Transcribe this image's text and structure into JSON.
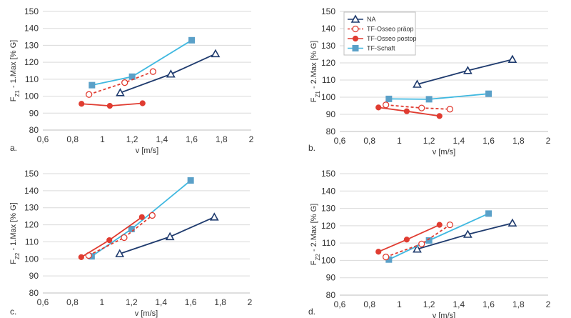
{
  "figure": {
    "legend": {
      "entries": [
        "NA",
        "TF-Osseo präop",
        "TF-Osseo postop",
        "TF-Schaft"
      ]
    }
  },
  "chart_data": [
    {
      "type": "line",
      "panel_label": "a.",
      "xlabel": "v [m/s]",
      "ylabel": "F_Z1 - 1.Max [% G]",
      "ylabel_parts": {
        "main": "F",
        "sub": "Z1",
        "rest": " - 1.Max [% G]"
      },
      "xlim": [
        0.6,
        2.0
      ],
      "ylim": [
        80,
        150
      ],
      "xticks": [
        "0,6",
        "0,8",
        "1",
        "1,2",
        "1,4",
        "1,6",
        "1,8",
        "2"
      ],
      "yticks": [
        "80",
        "90",
        "100",
        "110",
        "120",
        "130",
        "140",
        "150"
      ],
      "grid": true,
      "series": [
        {
          "name": "NA",
          "x": [
            1.12,
            1.46,
            1.76
          ],
          "y": [
            102,
            113,
            125
          ]
        },
        {
          "name": "TF-Osseo präop",
          "x": [
            0.91,
            1.15,
            1.34
          ],
          "y": [
            101,
            108,
            114.5
          ]
        },
        {
          "name": "TF-Osseo postop",
          "x": [
            0.86,
            1.05,
            1.27
          ],
          "y": [
            95.5,
            94.3,
            95.8
          ]
        },
        {
          "name": "TF-Schaft",
          "x": [
            0.93,
            1.2,
            1.6
          ],
          "y": [
            106.5,
            111.5,
            133
          ]
        }
      ]
    },
    {
      "type": "line",
      "panel_label": "b.",
      "xlabel": "v [m/s]",
      "ylabel": "F_Z1 - 2.Max [% G]",
      "ylabel_parts": {
        "main": "F",
        "sub": "Z1",
        "rest": " - 2.Max [% G]"
      },
      "xlim": [
        0.6,
        2.0
      ],
      "ylim": [
        80,
        150
      ],
      "xticks": [
        "0,6",
        "0,8",
        "1",
        "1,2",
        "1,4",
        "1,6",
        "1,8",
        "2"
      ],
      "yticks": [
        "80",
        "90",
        "100",
        "110",
        "120",
        "130",
        "140",
        "150"
      ],
      "grid": true,
      "legend_position": "top-left",
      "series": [
        {
          "name": "NA",
          "x": [
            1.12,
            1.46,
            1.76
          ],
          "y": [
            107.5,
            115.5,
            122
          ]
        },
        {
          "name": "TF-Osseo präop",
          "x": [
            0.91,
            1.15,
            1.34
          ],
          "y": [
            95.5,
            93.7,
            93
          ]
        },
        {
          "name": "TF-Osseo postop",
          "x": [
            0.86,
            1.05,
            1.27
          ],
          "y": [
            94,
            91.8,
            89
          ]
        },
        {
          "name": "TF-Schaft",
          "x": [
            0.93,
            1.2,
            1.6
          ],
          "y": [
            99,
            98.8,
            102
          ]
        }
      ]
    },
    {
      "type": "line",
      "panel_label": "c.",
      "xlabel": "v [m/s]",
      "ylabel": "F_Z2 - 1.Max [% G]",
      "ylabel_parts": {
        "main": "F",
        "sub": "Z2",
        "rest": " - 1.Max [% G]"
      },
      "xlim": [
        0.6,
        2.0
      ],
      "ylim": [
        80,
        150
      ],
      "xticks": [
        "0,6",
        "0,8",
        "1",
        "1,2",
        "1,4",
        "1,6",
        "1,8",
        "2"
      ],
      "yticks": [
        "80",
        "90",
        "100",
        "110",
        "120",
        "130",
        "140",
        "150"
      ],
      "grid": true,
      "series": [
        {
          "name": "NA",
          "x": [
            1.12,
            1.46,
            1.76
          ],
          "y": [
            103,
            113,
            124.5
          ]
        },
        {
          "name": "TF-Osseo präop",
          "x": [
            0.91,
            1.15,
            1.34
          ],
          "y": [
            102,
            112.5,
            125.5
          ]
        },
        {
          "name": "TF-Osseo postop",
          "x": [
            0.86,
            1.05,
            1.27
          ],
          "y": [
            101,
            111,
            124.5
          ]
        },
        {
          "name": "TF-Schaft",
          "x": [
            0.93,
            1.2,
            1.6
          ],
          "y": [
            101.5,
            117.5,
            146
          ]
        }
      ]
    },
    {
      "type": "line",
      "panel_label": "d.",
      "xlabel": "v [m/s]",
      "ylabel": "F_Z2 - 2.Max [% G]",
      "ylabel_parts": {
        "main": "F",
        "sub": "Z2",
        "rest": " - 2.Max [% G]"
      },
      "xlim": [
        0.6,
        2.0
      ],
      "ylim": [
        80,
        150
      ],
      "xticks": [
        "0,6",
        "0,8",
        "1",
        "1,2",
        "1,4",
        "1,6",
        "1,8",
        "2"
      ],
      "yticks": [
        "80",
        "90",
        "100",
        "110",
        "120",
        "130",
        "140",
        "150"
      ],
      "grid": true,
      "series": [
        {
          "name": "NA",
          "x": [
            1.12,
            1.46,
            1.76
          ],
          "y": [
            106.5,
            115,
            121.5
          ]
        },
        {
          "name": "TF-Osseo präop",
          "x": [
            0.91,
            1.15,
            1.34
          ],
          "y": [
            102,
            109.5,
            120.5
          ]
        },
        {
          "name": "TF-Osseo postop",
          "x": [
            0.86,
            1.05,
            1.27
          ],
          "y": [
            105,
            112,
            120.5
          ]
        },
        {
          "name": "TF-Schaft",
          "x": [
            0.93,
            1.2,
            1.6
          ],
          "y": [
            100.5,
            111.5,
            127
          ]
        }
      ]
    }
  ],
  "series_style": {
    "NA": {
      "color": "#1f3b6e",
      "marker": "triangle-open",
      "dash": "none"
    },
    "TF-Osseo präop": {
      "color": "#e03c31",
      "marker": "circle-open",
      "dash": "dashed"
    },
    "TF-Osseo postop": {
      "color": "#e03c31",
      "marker": "circle-filled",
      "dash": "none"
    },
    "TF-Schaft": {
      "color": "#3fb8e0",
      "marker": "square-filled",
      "dash": "none",
      "marker_color": "#5aa0c8"
    }
  }
}
